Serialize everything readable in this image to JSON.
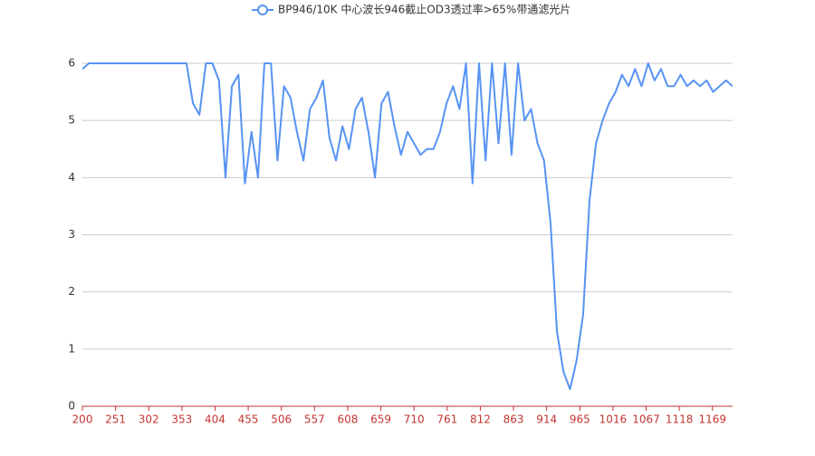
{
  "chart_data": {
    "type": "line",
    "series": [
      {
        "name": "BP946/10K 中心波长946截止OD3透过率>65%带通滤光片",
        "color": "#5793f3",
        "values": [
          5.9,
          6,
          6,
          6,
          6,
          6,
          6,
          6,
          6,
          6,
          6,
          6,
          6,
          6,
          6,
          6,
          6,
          5.3,
          5.1,
          6,
          6,
          5.7,
          4.0,
          5.6,
          5.8,
          3.9,
          4.8,
          4.0,
          6,
          6,
          4.3,
          5.6,
          5.4,
          4.8,
          4.3,
          5.2,
          5.4,
          5.7,
          4.7,
          4.3,
          4.9,
          4.5,
          5.2,
          5.4,
          4.8,
          4.0,
          5.3,
          5.5,
          4.9,
          4.4,
          4.8,
          4.6,
          4.4,
          4.5,
          4.5,
          4.8,
          5.3,
          5.6,
          5.2,
          6,
          3.9,
          6,
          4.3,
          6,
          4.6,
          6,
          4.4,
          6,
          5.0,
          5.2,
          4.6,
          4.3,
          3.2,
          1.3,
          0.6,
          0.3,
          0.8,
          1.6,
          3.6,
          4.6,
          5.0,
          5.3,
          5.5,
          5.8,
          5.6,
          5.9,
          5.6,
          6,
          5.7,
          5.9,
          5.6,
          5.6,
          5.8,
          5.6,
          5.7,
          5.6,
          5.7,
          5.5,
          5.6,
          5.7,
          5.6
        ]
      }
    ],
    "x": [
      200,
      210,
      220,
      230,
      240,
      250,
      260,
      270,
      280,
      290,
      300,
      310,
      320,
      330,
      340,
      350,
      360,
      370,
      380,
      390,
      400,
      410,
      420,
      430,
      440,
      450,
      460,
      470,
      480,
      490,
      500,
      510,
      520,
      530,
      540,
      550,
      560,
      570,
      580,
      590,
      600,
      610,
      620,
      630,
      640,
      650,
      660,
      670,
      680,
      690,
      700,
      710,
      720,
      730,
      740,
      750,
      760,
      770,
      780,
      790,
      800,
      810,
      820,
      830,
      840,
      850,
      860,
      870,
      880,
      890,
      900,
      910,
      920,
      930,
      940,
      950,
      960,
      970,
      980,
      990,
      1000,
      1010,
      1020,
      1030,
      1040,
      1050,
      1060,
      1070,
      1080,
      1090,
      1100,
      1110,
      1120,
      1130,
      1140,
      1150,
      1160,
      1170,
      1180,
      1190,
      1200
    ],
    "xlim": [
      200,
      1200
    ],
    "xticks": [
      200,
      251,
      302,
      353,
      404,
      455,
      506,
      557,
      608,
      659,
      710,
      761,
      812,
      863,
      914,
      965,
      1016,
      1067,
      1118,
      1169
    ],
    "ylim": [
      0,
      6
    ],
    "yticks": [
      0,
      1,
      2,
      3,
      4,
      5,
      6
    ],
    "grid": true,
    "legend": "top"
  }
}
